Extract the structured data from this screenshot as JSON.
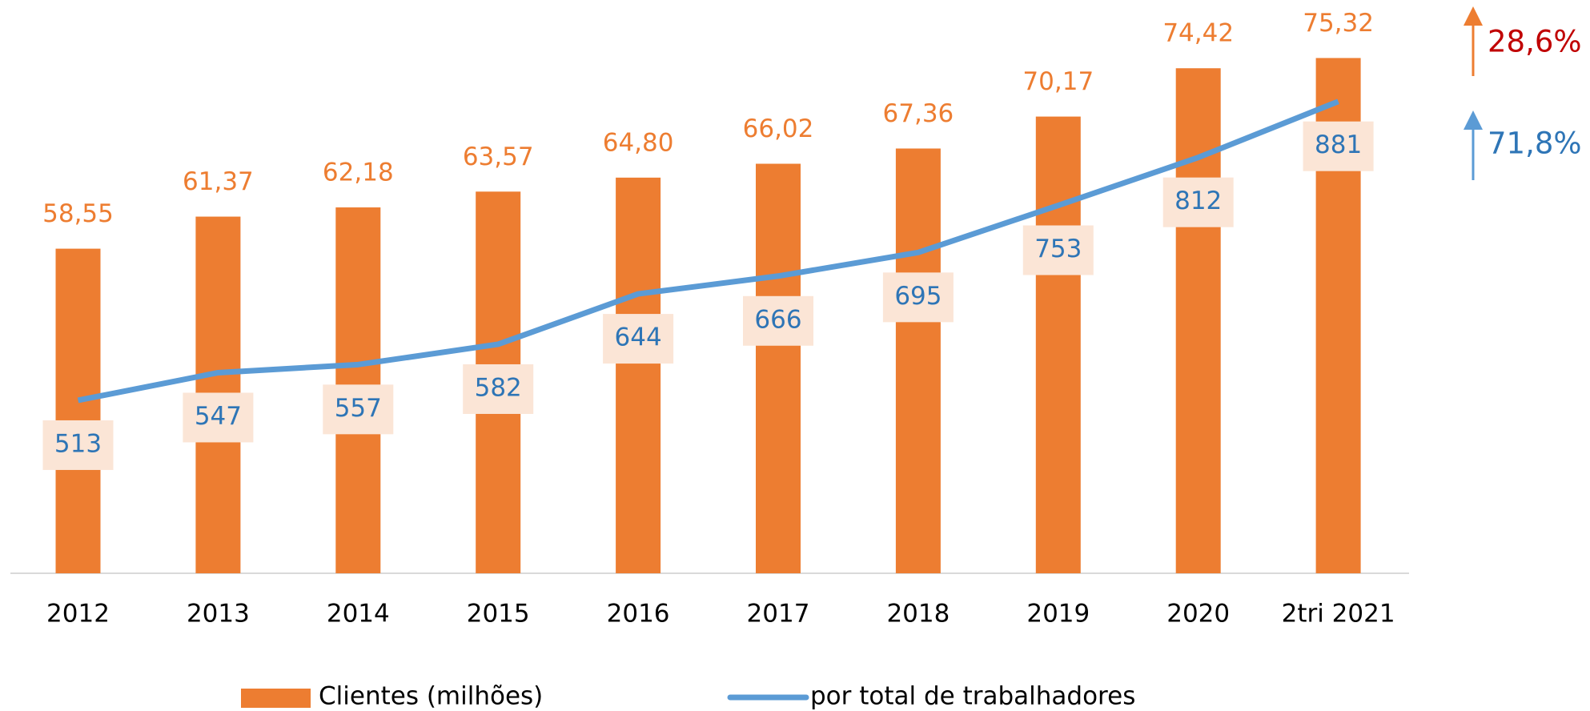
{
  "chart_data": {
    "type": "bar-line",
    "categories": [
      "2012",
      "2013",
      "2014",
      "2015",
      "2016",
      "2017",
      "2018",
      "2019",
      "2020",
      "2tri 2021"
    ],
    "series": [
      {
        "name": "Clientes (milhões)",
        "type": "bar",
        "color": "#ed7d31",
        "label_color": "#ed7d31",
        "values": [
          58.55,
          61.37,
          62.18,
          63.57,
          64.8,
          66.02,
          67.36,
          70.17,
          74.42,
          75.32
        ],
        "value_labels": [
          "58,55",
          "61,37",
          "62,18",
          "63,57",
          "64,80",
          "66,02",
          "67,36",
          "70,17",
          "74,42",
          "75,32"
        ]
      },
      {
        "name": "por total de trabalhadores",
        "type": "line",
        "axis": "y2",
        "color": "#5b9bd5",
        "label_color": "#2e75b6",
        "label_box": "#fbe5d6",
        "values": [
          513,
          547,
          557,
          582,
          644,
          666,
          695,
          753,
          812,
          881
        ],
        "value_labels": [
          "513",
          "547",
          "557",
          "582",
          "644",
          "666",
          "695",
          "753",
          "812",
          "881"
        ]
      }
    ],
    "ylim": [
      30,
      80
    ],
    "y2lim": [
      300,
      1000
    ],
    "annotations": [
      {
        "text": "28,6%",
        "color": "#c00000",
        "arrow_color": "#ed7d31"
      },
      {
        "text": "71,8%",
        "color": "#2e75b6",
        "arrow_color": "#5b9bd5"
      }
    ],
    "legend": "bottom"
  }
}
